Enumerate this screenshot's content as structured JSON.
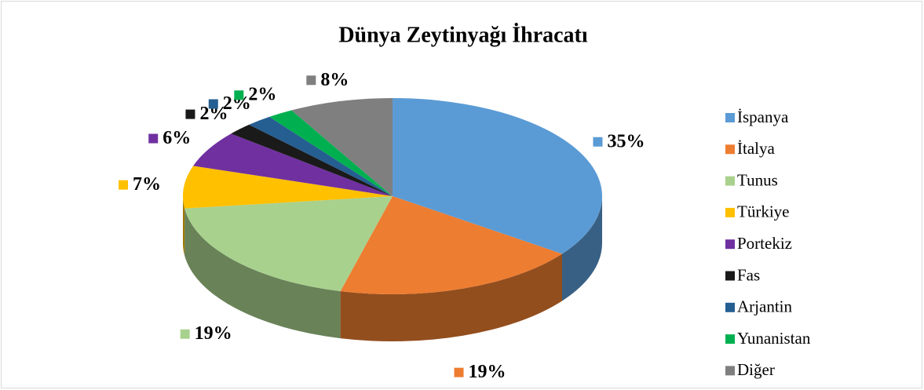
{
  "chart_data": {
    "type": "pie3d",
    "title": "Dünya Zeytinyağı İhracatı",
    "categories": [
      "İspanya",
      "İtalya",
      "Tunus",
      "Türkiye",
      "Portekiz",
      "Fas",
      "Arjantin",
      "Yunanistan",
      "Diğer"
    ],
    "values": [
      35,
      19,
      19,
      7,
      6,
      2,
      2,
      2,
      8
    ],
    "value_labels": [
      "35%",
      "19%",
      "19%",
      "7%",
      "6%",
      "2%",
      "2%",
      "2%",
      "8%"
    ],
    "colors": [
      "#5b9bd5",
      "#ed7d31",
      "#a9d18e",
      "#ffc000",
      "#7030a0",
      "#1a1a1a",
      "#255e91",
      "#00b050",
      "#7f7f7f"
    ],
    "legend": "right"
  }
}
